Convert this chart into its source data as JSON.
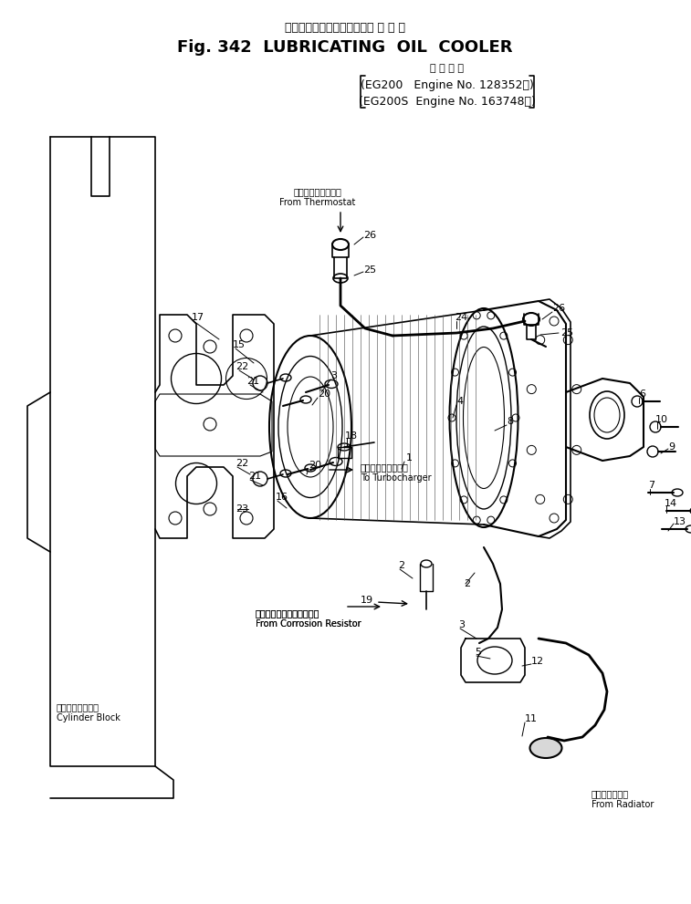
{
  "title_jp": "ルーブリケーティングオイル ク ー ラ",
  "title_en": "Fig. 342  LUBRICATING  OIL  COOLER",
  "subtitle_jp": "適 用 号 機",
  "line1": "(EG200   Engine No. 128352～)",
  "line2": "(EG200S  Engine No. 163748～)",
  "bg_color": "#ffffff",
  "text_color": "#000000",
  "label_from_thermostat_jp": "サーモスタットから",
  "label_from_thermostat_en": "From Thermostat",
  "label_to_turbocharger_jp": "ターボチャージャへ",
  "label_to_turbocharger_en": "To Turbocharger",
  "label_cylinder_block_jp": "シリンダブロック",
  "label_cylinder_block_en": "Cylinder Block",
  "label_from_corrosion_jp": "コロージョンレジスタから",
  "label_from_corrosion_en": "From Corrosion Resistor",
  "label_from_radiator_jp": "ラジエータから",
  "label_from_radiator_en": "From Radiator",
  "fig_width": 7.57,
  "fig_height": 9.91,
  "dpi": 100
}
